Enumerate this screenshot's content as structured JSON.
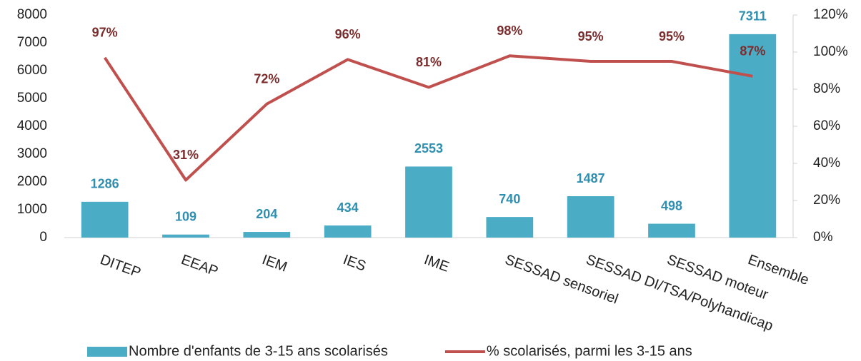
{
  "chart_data": {
    "type": "combo",
    "categories": [
      "DITEP",
      "EEAP",
      "IEM",
      "IES",
      "IME",
      "SESSAD sensoriel",
      "SESSAD DI/TSA/Polyhandicap",
      "SESSAD moteur",
      "Ensemble"
    ],
    "series": [
      {
        "name": "Nombre d'enfants de 3-15 ans scolarisés",
        "type": "bar",
        "color": "#4bacc6",
        "label_color": "#2e8fb0",
        "values": [
          1286,
          109,
          204,
          434,
          2553,
          740,
          1487,
          498,
          7311
        ]
      },
      {
        "name": "% scolarisés, parmi les 3-15 ans",
        "type": "line",
        "axis": "y2",
        "color": "#c0504d",
        "label_color": "#7b2c2c",
        "values": [
          97,
          31,
          72,
          96,
          81,
          98,
          95,
          95,
          87
        ],
        "value_labels": [
          "97%",
          "31%",
          "72%",
          "96%",
          "81%",
          "98%",
          "95%",
          "95%",
          "87%"
        ]
      }
    ],
    "ylim": [
      0,
      8000
    ],
    "yticks": [
      0,
      1000,
      2000,
      3000,
      4000,
      5000,
      6000,
      7000,
      8000
    ],
    "y2lim": [
      0,
      120
    ],
    "y2ticks": [
      {
        "value": 0,
        "label": "0%"
      },
      {
        "value": 20,
        "label": "20%"
      },
      {
        "value": 40,
        "label": "40%"
      },
      {
        "value": 60,
        "label": "60%"
      },
      {
        "value": 80,
        "label": "80%"
      },
      {
        "value": 100,
        "label": "100%"
      },
      {
        "value": 120,
        "label": "120%"
      }
    ],
    "grid": false,
    "legend": "bottom"
  }
}
